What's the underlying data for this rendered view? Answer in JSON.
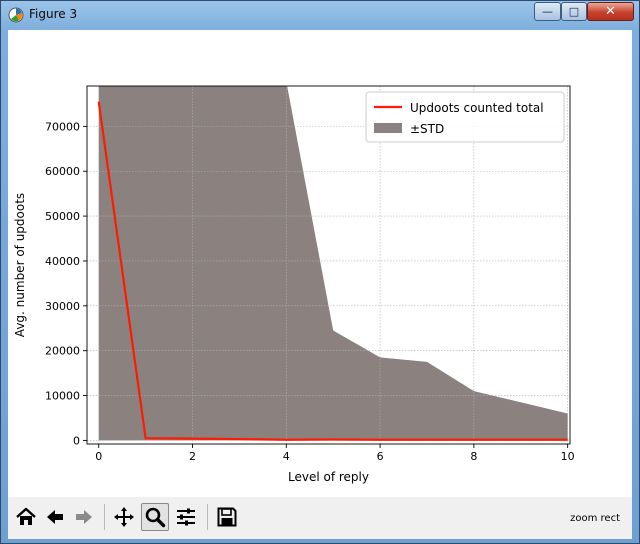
{
  "window": {
    "title": "Figure 3",
    "minimize": "—",
    "maximize": "□",
    "close": "✕"
  },
  "toolbar": {
    "buttons": [
      {
        "name": "home-icon"
      },
      {
        "name": "back-arrow-icon"
      },
      {
        "name": "forward-arrow-icon"
      },
      {
        "name": "pan-move-icon"
      },
      {
        "name": "zoom-magnifier-icon",
        "active": true
      },
      {
        "name": "subplots-sliders-icon"
      },
      {
        "name": "save-floppy-icon"
      }
    ],
    "status": "zoom rect"
  },
  "chart_data": {
    "type": "line",
    "xlabel": "Level of reply",
    "ylabel": "Avg. number of updoots",
    "xlim": [
      -0.25,
      10.05
    ],
    "ylim": [
      -800,
      79000
    ],
    "x_ticks": [
      0,
      2,
      4,
      6,
      8,
      10
    ],
    "y_ticks": [
      0,
      10000,
      20000,
      30000,
      40000,
      50000,
      60000,
      70000
    ],
    "grid": true,
    "legend_position": "top-right",
    "colors": {
      "line": "#ff1a00",
      "band": "#8b8280"
    },
    "series": [
      {
        "name": "Updoots counted total",
        "kind": "line",
        "x": [
          0,
          1,
          2,
          3,
          4,
          5,
          6,
          7,
          8,
          9,
          10
        ],
        "y": [
          75500,
          500,
          400,
          300,
          150,
          200,
          150,
          150,
          150,
          150,
          150
        ]
      },
      {
        "name": "±STD",
        "kind": "band",
        "x": [
          0,
          1,
          2,
          3,
          4,
          5,
          6,
          7,
          8,
          9,
          10
        ],
        "upper": [
          151000,
          200000,
          160000,
          120000,
          80000,
          24500,
          18500,
          17500,
          11000,
          8500,
          6000
        ],
        "lower": [
          0,
          0,
          0,
          0,
          0,
          0,
          0,
          0,
          0,
          0,
          0
        ]
      }
    ]
  }
}
